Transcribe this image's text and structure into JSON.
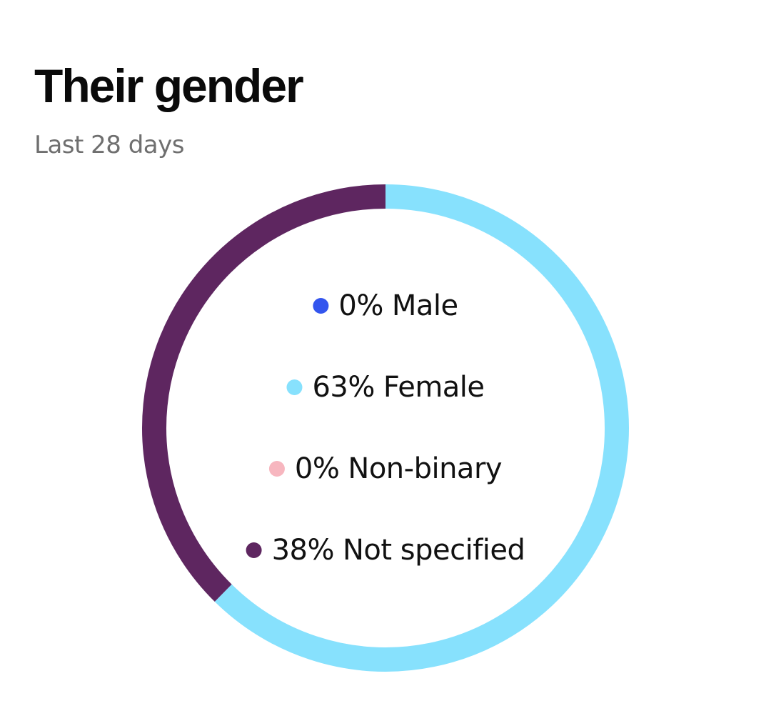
{
  "header": {
    "title": "Their gender",
    "subtitle": "Last 28 days"
  },
  "chart_data": {
    "type": "pie",
    "style": "donut",
    "title": "Their gender",
    "subtitle": "Last 28 days",
    "legend_position": "center",
    "categories": [
      "Male",
      "Female",
      "Non-binary",
      "Not specified"
    ],
    "values": [
      0,
      63,
      0,
      38
    ],
    "labels": [
      "0%",
      "63%",
      "0%",
      "38%"
    ],
    "colors": [
      "#3355ee",
      "#87e1fd",
      "#f7b6bf",
      "#5e2660"
    ]
  }
}
